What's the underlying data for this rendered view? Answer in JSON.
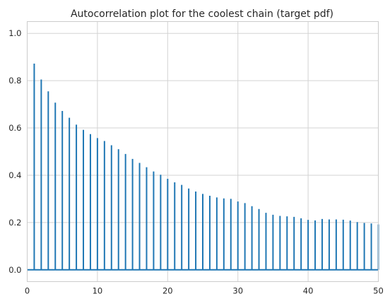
{
  "chart_data": {
    "type": "bar",
    "style": "stem",
    "title": "Autocorrelation plot for the coolest chain (target pdf)",
    "xlabel": "",
    "ylabel": "",
    "xlim": [
      0,
      50
    ],
    "ylim": [
      -0.05,
      1.05
    ],
    "xticks": [
      0,
      10,
      20,
      30,
      40,
      50
    ],
    "yticks": [
      0.0,
      0.2,
      0.4,
      0.6,
      0.8,
      1.0
    ],
    "xtick_labels": [
      "0",
      "10",
      "20",
      "30",
      "40",
      "50"
    ],
    "ytick_labels": [
      "0.0",
      "0.2",
      "0.4",
      "0.6",
      "0.8",
      "1.0"
    ],
    "grid": true,
    "baseline": 0,
    "color": "#1f77b4",
    "lags": [
      1,
      2,
      3,
      4,
      5,
      6,
      7,
      8,
      9,
      10,
      11,
      12,
      13,
      14,
      15,
      16,
      17,
      18,
      19,
      20,
      21,
      22,
      23,
      24,
      25,
      26,
      27,
      28,
      29,
      30,
      31,
      32,
      33,
      34,
      35,
      36,
      37,
      38,
      39,
      40,
      41,
      42,
      43,
      44,
      45,
      46,
      47,
      48,
      49,
      50
    ],
    "values": [
      0.872,
      0.805,
      0.755,
      0.707,
      0.672,
      0.643,
      0.614,
      0.592,
      0.574,
      0.557,
      0.545,
      0.527,
      0.51,
      0.49,
      0.469,
      0.452,
      0.434,
      0.416,
      0.402,
      0.385,
      0.37,
      0.359,
      0.344,
      0.331,
      0.321,
      0.313,
      0.306,
      0.302,
      0.3,
      0.289,
      0.282,
      0.269,
      0.257,
      0.241,
      0.233,
      0.228,
      0.226,
      0.224,
      0.218,
      0.211,
      0.209,
      0.215,
      0.213,
      0.213,
      0.212,
      0.208,
      0.202,
      0.198,
      0.196,
      0.192
    ]
  }
}
